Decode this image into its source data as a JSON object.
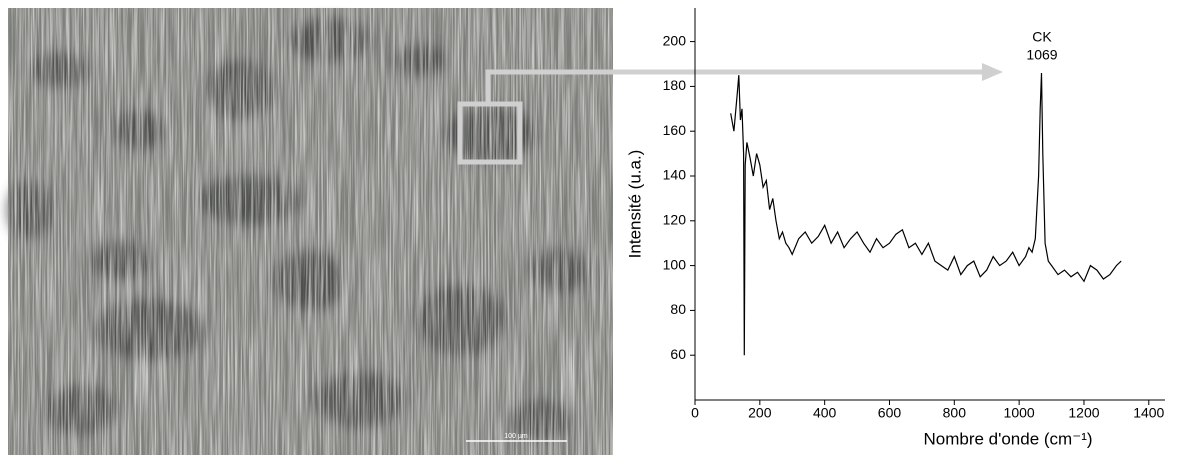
{
  "image": {
    "scale_bar": "100 µm"
  },
  "chart_data": {
    "type": "line",
    "xlabel": "Nombre d'onde (cm⁻¹)",
    "ylabel": "Intensité (u.a.)",
    "annotations": [
      "CK",
      "1069"
    ],
    "color": "#000000",
    "x": [
      110,
      120,
      130,
      135,
      140,
      145,
      150,
      152,
      155,
      160,
      170,
      180,
      190,
      200,
      210,
      220,
      230,
      240,
      250,
      260,
      270,
      280,
      290,
      300,
      320,
      340,
      360,
      380,
      400,
      420,
      440,
      460,
      480,
      500,
      520,
      540,
      560,
      580,
      600,
      620,
      640,
      660,
      680,
      700,
      720,
      740,
      760,
      780,
      800,
      820,
      840,
      860,
      880,
      900,
      920,
      940,
      960,
      980,
      1000,
      1020,
      1030,
      1040,
      1050,
      1060,
      1065,
      1069,
      1073,
      1080,
      1090,
      1100,
      1120,
      1140,
      1160,
      1180,
      1200,
      1220,
      1240,
      1260,
      1280,
      1300,
      1315
    ],
    "values": [
      168,
      160,
      176,
      185,
      165,
      170,
      150,
      60,
      145,
      155,
      148,
      140,
      150,
      145,
      135,
      138,
      125,
      130,
      120,
      112,
      115,
      110,
      108,
      105,
      112,
      115,
      110,
      113,
      118,
      110,
      115,
      108,
      112,
      115,
      110,
      106,
      112,
      108,
      110,
      114,
      116,
      108,
      110,
      105,
      110,
      102,
      100,
      98,
      104,
      96,
      100,
      102,
      95,
      98,
      104,
      100,
      102,
      106,
      100,
      104,
      108,
      106,
      112,
      140,
      170,
      186,
      150,
      110,
      102,
      100,
      96,
      98,
      95,
      97,
      93,
      100,
      98,
      94,
      96,
      100,
      102
    ],
    "xlim": [
      0,
      1450
    ],
    "xticks": [
      0,
      200,
      400,
      600,
      800,
      1000,
      1200,
      1400
    ],
    "ylim": [
      40,
      215
    ],
    "yticks": [
      60,
      80,
      100,
      120,
      140,
      160,
      180,
      200
    ]
  }
}
